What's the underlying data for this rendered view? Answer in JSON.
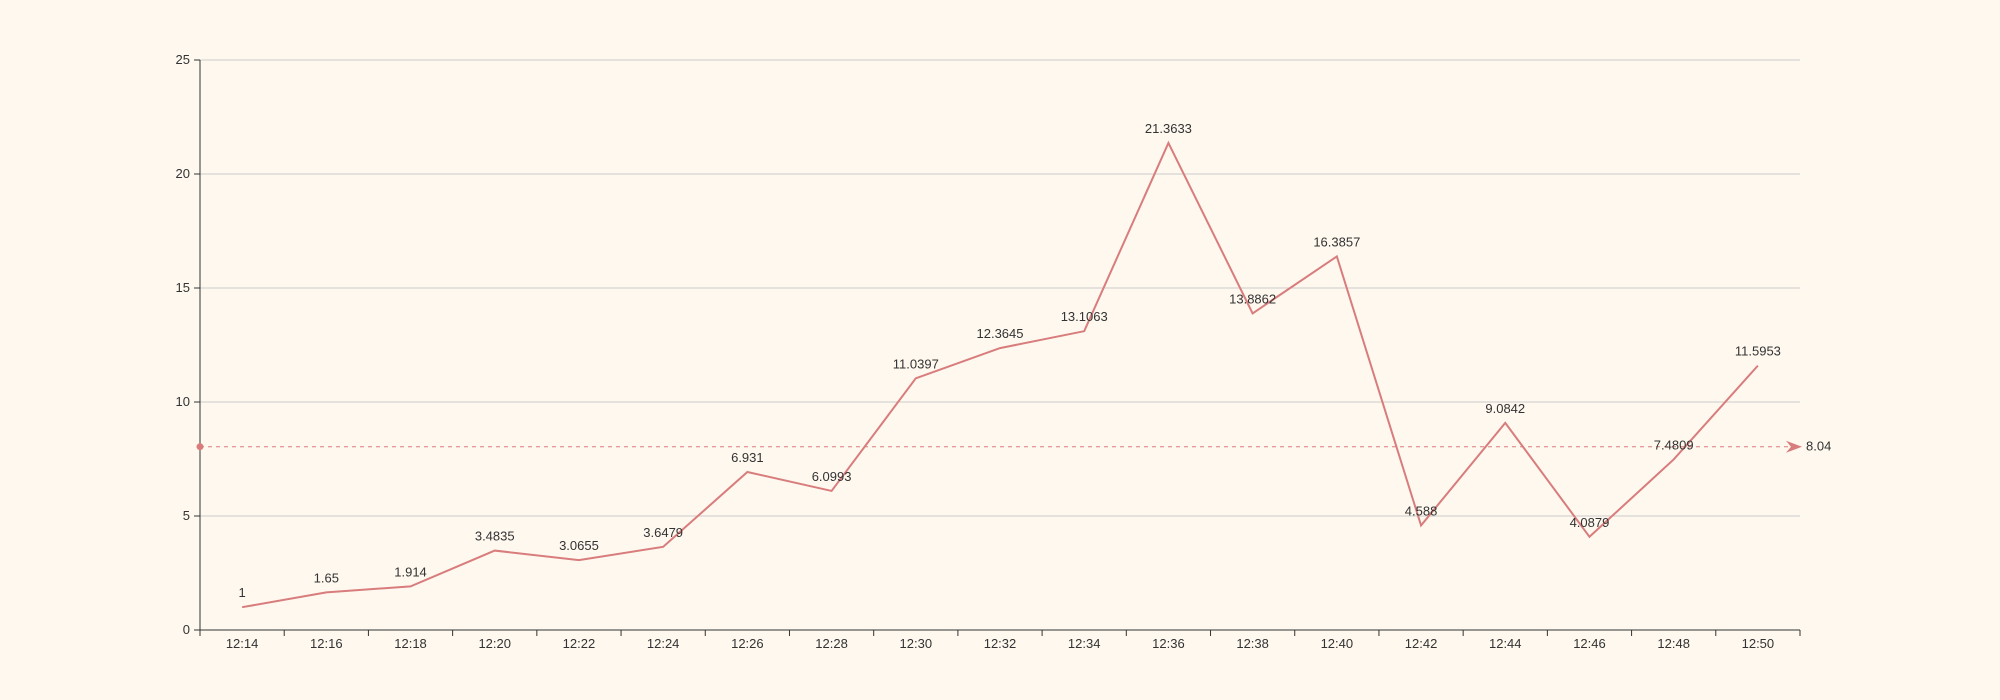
{
  "chart_data": {
    "type": "line",
    "title": "",
    "xlabel": "",
    "ylabel": "",
    "categories": [
      "12:14",
      "12:16",
      "12:18",
      "12:20",
      "12:22",
      "12:24",
      "12:26",
      "12:28",
      "12:30",
      "12:32",
      "12:34",
      "12:36",
      "12:38",
      "12:40",
      "12:42",
      "12:44",
      "12:46",
      "12:48",
      "12:50"
    ],
    "values": [
      1,
      1.65,
      1.914,
      3.4835,
      3.0655,
      3.6479,
      6.931,
      6.0993,
      11.0397,
      12.3645,
      13.1063,
      21.3633,
      13.8862,
      16.3857,
      4.588,
      9.0842,
      4.0879,
      7.4809,
      11.5953
    ],
    "value_labels": [
      "1",
      "1.65",
      "1.914",
      "3.4835",
      "3.0655",
      "3.6479",
      "6.931",
      "6.0993",
      "11.0397",
      "12.3645",
      "13.1063",
      "21.3633",
      "13.8862",
      "16.3857",
      "4.588",
      "9.0842",
      "4.0879",
      "7.4809",
      "11.5953"
    ],
    "ylim": [
      0,
      25
    ],
    "yticks": [
      "0",
      "5",
      "10",
      "15",
      "20",
      "25"
    ],
    "grid": true,
    "average_line": {
      "value": 8.04,
      "label": "8.04"
    },
    "colors": {
      "line": "#d87c7c",
      "grid": "#cccccc",
      "axis": "#333333",
      "background": "#fef8ef"
    }
  }
}
